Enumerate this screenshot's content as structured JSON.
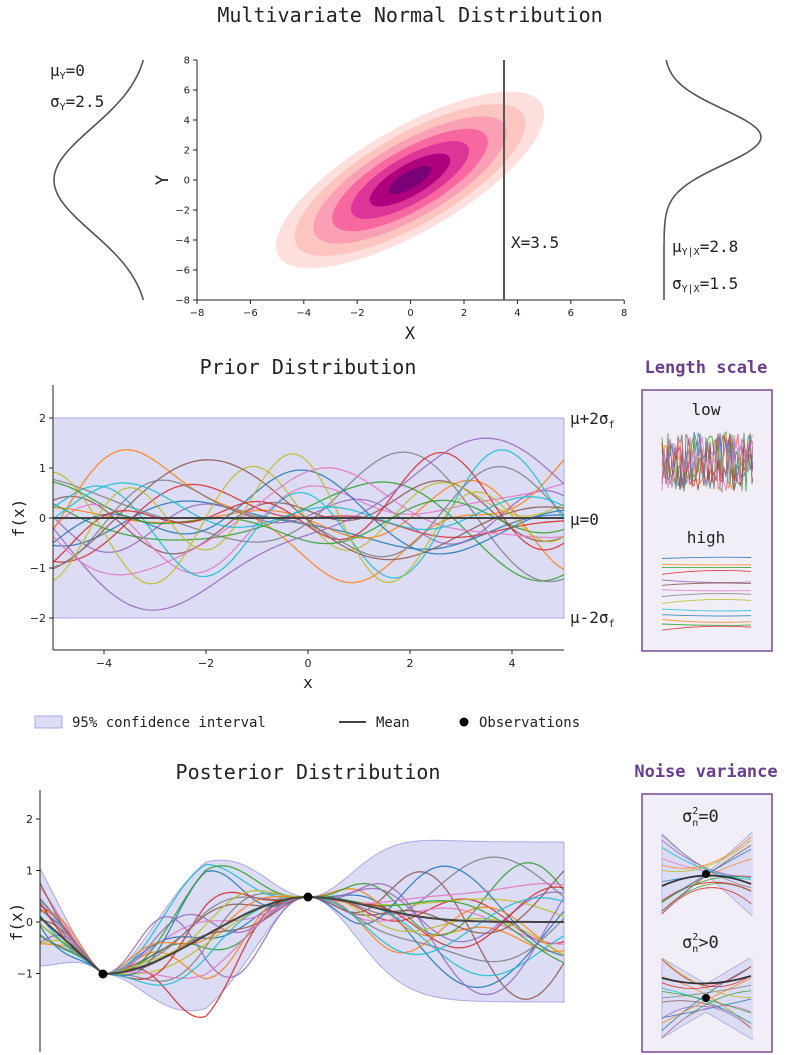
{
  "mvn": {
    "title": "Multivariate Normal Distribution",
    "xlabel": "X",
    "ylabel": "Y",
    "ticks": [
      "−8",
      "−6",
      "−4",
      "−2",
      "0",
      "2",
      "4",
      "6",
      "8"
    ],
    "marginal_y": {
      "mu": "μ",
      "mu_sub": "Y",
      "mu_val": "=0",
      "sigma": "σ",
      "sigma_sub": "Y",
      "sigma_val": "=2.5"
    },
    "cut_label": "X=3.5",
    "conditional": {
      "mu": "μ",
      "mu_sub": "Y|X",
      "mu_val": "=2.8",
      "sigma": "σ",
      "sigma_sub": "Y|X",
      "sigma_val": "=1.5"
    },
    "cmap_colors": [
      "#fde0dd",
      "#fcc5c0",
      "#fa9fb5",
      "#f768a1",
      "#dd3497",
      "#ae017e",
      "#7a0177"
    ]
  },
  "prior": {
    "title": "Prior Distribution",
    "xlabel": "x",
    "ylabel": "f(x)",
    "xticks": [
      "−4",
      "−2",
      "0",
      "2",
      "4"
    ],
    "yticks": [
      "2",
      "1",
      "0",
      "−1",
      "−2"
    ],
    "upper_label": "μ+2σ",
    "upper_sub": "f",
    "mean_label": "μ=0",
    "lower_label": "μ-2σ",
    "lower_sub": "f"
  },
  "length_scale": {
    "title": "Length scale",
    "low": "low",
    "high": "high",
    "accent": "#6a3d8f"
  },
  "legend": {
    "ci": "95% confidence interval",
    "mean": "Mean",
    "obs": "Observations"
  },
  "posterior": {
    "title": "Posterior Distribution",
    "ylabel": "f(x)",
    "yticks": [
      "2",
      "1",
      "0",
      "−1"
    ]
  },
  "noise": {
    "title": "Noise variance",
    "zero_label": "σ",
    "zero_sub": "n",
    "zero_sup": "2",
    "zero_val": "=0",
    "pos_label": "σ",
    "pos_sub": "n",
    "pos_sup": "2",
    "pos_val": ">0"
  },
  "colors": {
    "band": "#dcdcf5",
    "band_edge": "#a9a9e8",
    "panel_fill": "#f2eef7",
    "panel_edge": "#7a4a96",
    "series": [
      "#1f77b4",
      "#ff7f0e",
      "#2ca02c",
      "#d62728",
      "#9467bd",
      "#8c564b",
      "#e377c2",
      "#7f7f7f",
      "#bcbd22",
      "#17becf"
    ]
  }
}
